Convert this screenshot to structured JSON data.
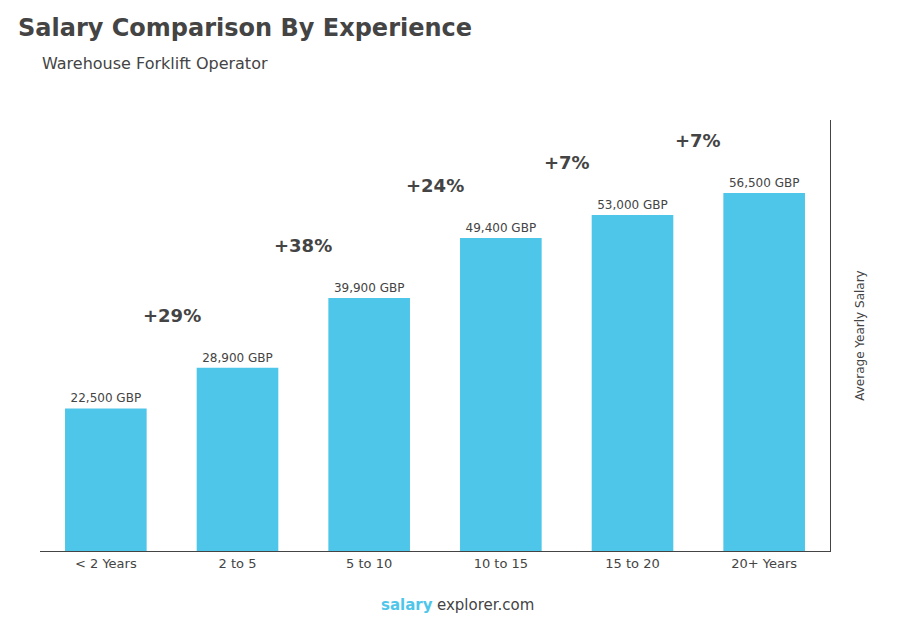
{
  "chart_data": {
    "type": "bar",
    "title": "Salary Comparison By Experience",
    "subtitle": "Warehouse Forklift Operator",
    "categories": [
      "< 2 Years",
      "2 to 5",
      "5 to 10",
      "10 to 15",
      "15 to 20",
      "20+ Years"
    ],
    "values": [
      22500,
      28900,
      39900,
      49400,
      53000,
      56500
    ],
    "value_labels": [
      "22,500 GBP",
      "28,900 GBP",
      "39,900 GBP",
      "49,400 GBP",
      "53,000 GBP",
      "56,500 GBP"
    ],
    "data_labels": true,
    "annotations": [
      "+29%",
      "+38%",
      "+24%",
      "+7%",
      "+7%"
    ],
    "ylabel": "Average Yearly Salary",
    "footer": [
      "salary",
      "explorer.com"
    ],
    "color": "#4ec6ea",
    "ylim": [
      0,
      68000
    ],
    "grid": false,
    "tick_labels": "x"
  }
}
